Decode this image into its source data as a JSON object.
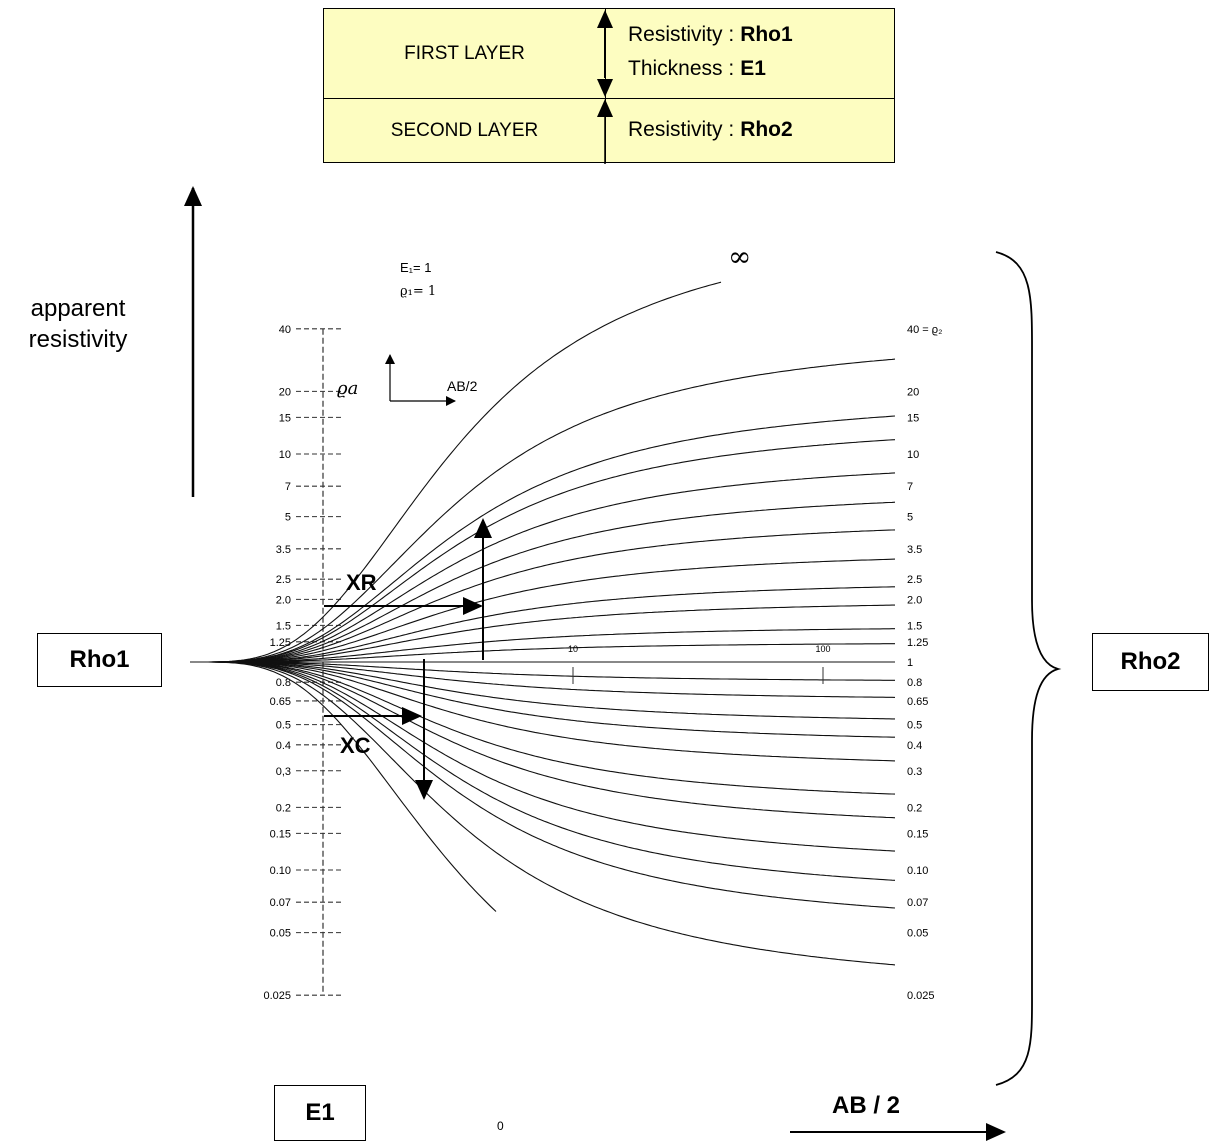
{
  "layer_table": {
    "first_layer": {
      "name": "FIRST LAYER",
      "resistivity_label": "Resistivity :",
      "resistivity_value": "Rho1",
      "thickness_label": "Thickness :",
      "thickness_value": "E1"
    },
    "second_layer": {
      "name": "SECOND LAYER",
      "resistivity_label": "Resistivity :",
      "resistivity_value": "Rho2"
    },
    "background_color": "#fdfdc1"
  },
  "annotations": {
    "y_axis_caption": "apparent resistivity",
    "x_axis_caption": "AB / 2",
    "rho1_box": "Rho1",
    "rho2_box": "Rho2",
    "e1_box": "E1",
    "xr_label": "XR",
    "xc_label": "XC",
    "params": [
      "E₁= 1",
      "ϱ₁= 1"
    ],
    "inset_y": "ϱa",
    "inset_x": "AB/2",
    "infinity_label": "∞",
    "zero_label": "0",
    "top_curve_label": "40 = ϱ₂"
  },
  "chart_data": {
    "type": "line",
    "x_scale": "log",
    "y_scale": "log",
    "ylim": [
      0.025,
      40
    ],
    "y_ticks": [
      "40",
      "20",
      "15",
      "10",
      "7",
      "5",
      "3.5",
      "2.5",
      "2.0",
      "1.5",
      "1.25",
      "0.8",
      "0.65",
      "0.5",
      "0.4",
      "0,3",
      "0.2",
      "0.15",
      "0.10",
      "0.07",
      "0.05",
      "0.025"
    ],
    "y_tick_values": [
      40,
      20,
      15,
      10,
      7,
      5,
      3.5,
      2.5,
      2.0,
      1.5,
      1.25,
      0.8,
      0.65,
      0.5,
      0.4,
      0.3,
      0.2,
      0.15,
      0.1,
      0.07,
      0.05,
      0.025
    ],
    "x_ticks": [
      "10",
      "100"
    ],
    "x_tick_values": [
      10,
      100
    ],
    "series": [
      {
        "name": "40",
        "rho2": 40
      },
      {
        "name": "20",
        "rho2": 20
      },
      {
        "name": "15",
        "rho2": 15
      },
      {
        "name": "10",
        "rho2": 10
      },
      {
        "name": "7",
        "rho2": 7
      },
      {
        "name": "5",
        "rho2": 5
      },
      {
        "name": "3.5",
        "rho2": 3.5
      },
      {
        "name": "2.5",
        "rho2": 2.5
      },
      {
        "name": "2.0",
        "rho2": 2.0
      },
      {
        "name": "1.5",
        "rho2": 1.5
      },
      {
        "name": "1.25",
        "rho2": 1.25
      },
      {
        "name": "1",
        "rho2": 1
      },
      {
        "name": "0.8",
        "rho2": 0.8
      },
      {
        "name": "0.65",
        "rho2": 0.65
      },
      {
        "name": "0.5",
        "rho2": 0.5
      },
      {
        "name": "0.4",
        "rho2": 0.4
      },
      {
        "name": "0.3",
        "rho2": 0.3
      },
      {
        "name": "0.2",
        "rho2": 0.2
      },
      {
        "name": "0.15",
        "rho2": 0.15
      },
      {
        "name": "0.10",
        "rho2": 0.1
      },
      {
        "name": "0.07",
        "rho2": 0.07
      },
      {
        "name": "0.05",
        "rho2": 0.05
      },
      {
        "name": "0.025",
        "rho2": 0.025
      }
    ]
  }
}
